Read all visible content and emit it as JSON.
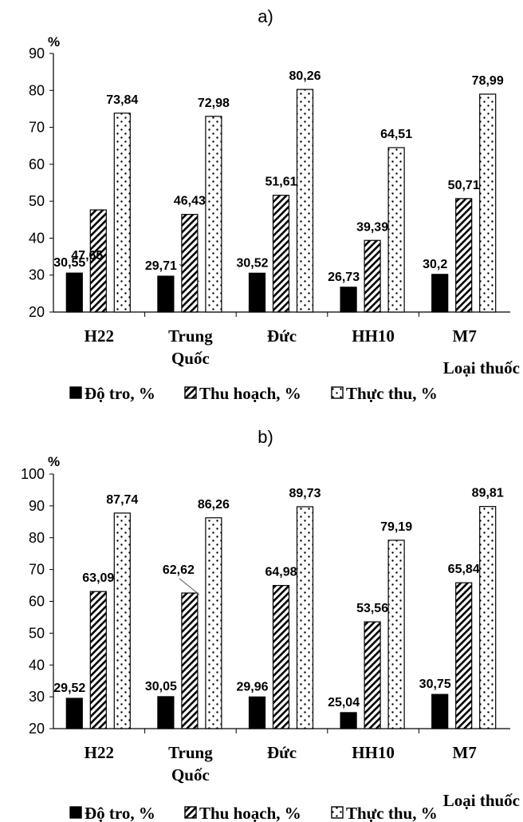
{
  "chart_data": [
    {
      "type": "bar",
      "title": "a)",
      "ylabel": "%",
      "xlabel": "Loại thuốc",
      "ylim": [
        20,
        90
      ],
      "yticks": [
        20,
        30,
        40,
        50,
        60,
        70,
        80,
        90
      ],
      "grid": false,
      "legend": "bottom",
      "categories": [
        [
          "H22"
        ],
        [
          "Trung",
          "Quốc"
        ],
        [
          "Đức"
        ],
        [
          "HH10"
        ],
        [
          "M7"
        ]
      ],
      "series": [
        {
          "name": "Độ tro, %",
          "pattern": "solid",
          "values": [
            30.55,
            29.71,
            30.52,
            26.73,
            30.2
          ],
          "labels": [
            "30,55",
            "29,71",
            "30,52",
            "26,73",
            "30,2"
          ]
        },
        {
          "name": "Thu hoạch, %",
          "pattern": "hatch",
          "values": [
            47.65,
            46.43,
            51.61,
            39.39,
            50.71
          ],
          "labels": [
            "47,65",
            "46,43",
            "51,61",
            "39,39",
            "50,71"
          ]
        },
        {
          "name": "Thực thu, %",
          "pattern": "dots",
          "values": [
            73.84,
            72.98,
            80.26,
            64.51,
            78.99
          ],
          "labels": [
            "73,84",
            "72,98",
            "80,26",
            "64,51",
            "78,99"
          ]
        }
      ]
    },
    {
      "type": "bar",
      "title": "b)",
      "ylabel": "%",
      "xlabel": "Loại thuốc",
      "ylim": [
        20,
        100
      ],
      "yticks": [
        20,
        30,
        40,
        50,
        60,
        70,
        80,
        90,
        100
      ],
      "grid": false,
      "legend": "bottom",
      "categories": [
        [
          "H22"
        ],
        [
          "Trung",
          "Quốc"
        ],
        [
          "Đức"
        ],
        [
          "HH10"
        ],
        [
          "M7"
        ]
      ],
      "series": [
        {
          "name": "Độ tro, %",
          "pattern": "solid",
          "values": [
            29.52,
            30.05,
            29.96,
            25.04,
            30.75
          ],
          "labels": [
            "29,52",
            "30,05",
            "29,96",
            "25,04",
            "30,75"
          ]
        },
        {
          "name": "Thu hoạch, %",
          "pattern": "hatch",
          "values": [
            63.09,
            62.62,
            64.98,
            53.56,
            65.84
          ],
          "labels": [
            "63,09",
            "62,62",
            "64,98",
            "53,56",
            "65,84"
          ]
        },
        {
          "name": "Thực thu, %",
          "pattern": "dots",
          "values": [
            87.74,
            86.26,
            89.73,
            79.19,
            89.81
          ],
          "labels": [
            "87,74",
            "86,26",
            "89,73",
            "79,19",
            "89,81"
          ]
        }
      ]
    }
  ]
}
